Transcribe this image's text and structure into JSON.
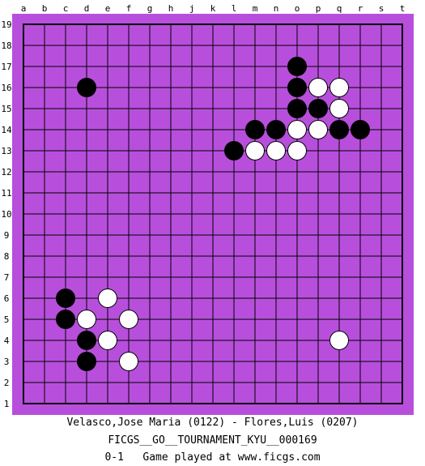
{
  "board": {
    "size": 19,
    "background_color": "#b84fdc",
    "line_color": "#000000",
    "column_labels": [
      "a",
      "b",
      "c",
      "d",
      "e",
      "f",
      "g",
      "h",
      "j",
      "k",
      "l",
      "m",
      "n",
      "o",
      "p",
      "q",
      "r",
      "s",
      "t"
    ],
    "row_labels": [
      "19",
      "18",
      "17",
      "16",
      "15",
      "14",
      "13",
      "12",
      "11",
      "10",
      "9",
      "8",
      "7",
      "6",
      "5",
      "4",
      "3",
      "2",
      "1"
    ]
  },
  "stones": [
    {
      "color": "black",
      "col": "o",
      "row": 17
    },
    {
      "color": "black",
      "col": "d",
      "row": 16
    },
    {
      "color": "black",
      "col": "o",
      "row": 16
    },
    {
      "color": "white",
      "col": "p",
      "row": 16
    },
    {
      "color": "white",
      "col": "q",
      "row": 16
    },
    {
      "color": "black",
      "col": "o",
      "row": 15
    },
    {
      "color": "black",
      "col": "p",
      "row": 15
    },
    {
      "color": "white",
      "col": "q",
      "row": 15
    },
    {
      "color": "black",
      "col": "m",
      "row": 14
    },
    {
      "color": "black",
      "col": "n",
      "row": 14
    },
    {
      "color": "white",
      "col": "o",
      "row": 14
    },
    {
      "color": "white",
      "col": "p",
      "row": 14
    },
    {
      "color": "black",
      "col": "q",
      "row": 14
    },
    {
      "color": "black",
      "col": "r",
      "row": 14
    },
    {
      "color": "black",
      "col": "l",
      "row": 13
    },
    {
      "color": "white",
      "col": "m",
      "row": 13
    },
    {
      "color": "white",
      "col": "n",
      "row": 13
    },
    {
      "color": "white",
      "col": "o",
      "row": 13
    },
    {
      "color": "black",
      "col": "c",
      "row": 6
    },
    {
      "color": "white",
      "col": "e",
      "row": 6
    },
    {
      "color": "black",
      "col": "c",
      "row": 5
    },
    {
      "color": "white",
      "col": "d",
      "row": 5
    },
    {
      "color": "white",
      "col": "f",
      "row": 5
    },
    {
      "color": "black",
      "col": "d",
      "row": 4
    },
    {
      "color": "white",
      "col": "e",
      "row": 4
    },
    {
      "color": "white",
      "col": "q",
      "row": 4
    },
    {
      "color": "black",
      "col": "d",
      "row": 3
    },
    {
      "color": "white",
      "col": "f",
      "row": 3
    }
  ],
  "players_line": "Velasco,Jose Maria (0122) - Flores,Luis (0207)",
  "tournament_line": "FICGS__GO__TOURNAMENT_KYU__000169",
  "result_line": "0-1   Game played at www.ficgs.com"
}
